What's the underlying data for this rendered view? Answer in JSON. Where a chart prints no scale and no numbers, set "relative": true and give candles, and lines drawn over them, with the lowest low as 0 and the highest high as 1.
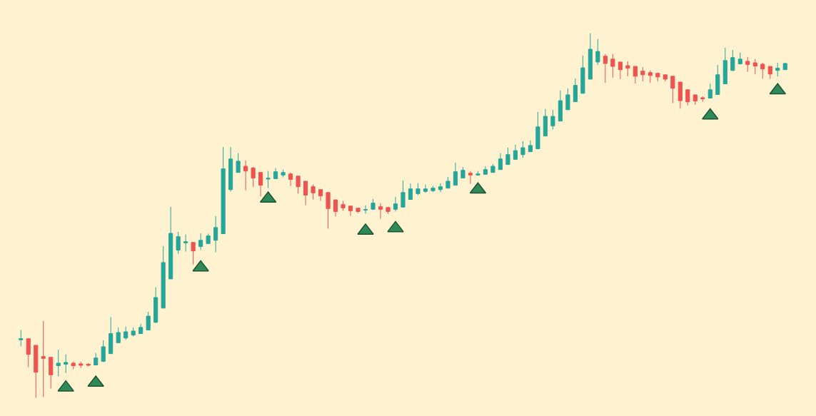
{
  "chart_data": {
    "type": "candlestick",
    "relative": true,
    "categories": [
      null,
      null,
      null,
      null,
      null,
      null,
      null,
      null,
      null,
      null,
      null,
      null,
      null,
      null,
      null,
      null,
      null,
      null,
      null,
      null,
      null,
      null,
      null,
      null,
      null,
      null,
      null,
      null,
      null,
      null,
      null,
      null,
      null,
      null,
      null,
      null,
      null,
      null,
      null,
      null,
      null,
      null,
      null,
      null,
      null,
      null,
      null,
      null,
      null,
      null,
      null,
      null,
      null,
      null,
      null,
      null,
      null,
      null,
      null,
      null,
      null,
      null,
      null,
      null,
      null,
      null,
      null,
      null,
      null,
      null,
      null,
      null,
      null,
      null,
      null,
      null,
      null,
      null,
      null,
      null,
      null,
      null,
      null,
      null,
      null,
      null,
      null,
      null,
      null,
      null,
      null,
      null,
      null,
      null,
      null,
      null,
      null,
      null,
      null,
      null,
      null,
      null,
      null
    ],
    "series": [
      {
        "ohlc": [
          [
            0.159,
            0.186,
            0.141,
            0.162
          ],
          [
            0.162,
            0.162,
            0.084,
            0.119
          ],
          [
            0.144,
            0.144,
            0,
            0.07
          ],
          [
            0.113,
            0.211,
            0.002,
            0.108
          ],
          [
            0.111,
            0.111,
            0.025,
            0.063
          ],
          [
            0.088,
            0.132,
            0.059,
            0.095
          ],
          [
            0.092,
            0.119,
            0.068,
            0.097
          ],
          [
            0.095,
            0.099,
            0.078,
            0.088
          ],
          [
            0.093,
            0.099,
            0.082,
            0.089
          ],
          [
            0.092,
            0.095,
            0.086,
            0.089
          ],
          [
            0.09,
            0.123,
            0.09,
            0.109
          ],
          [
            0.1,
            0.158,
            0.098,
            0.14
          ],
          [
            0.121,
            0.221,
            0.121,
            0.176
          ],
          [
            0.151,
            0.193,
            0.151,
            0.179
          ],
          [
            0.164,
            0.195,
            0.159,
            0.181
          ],
          [
            0.172,
            0.193,
            0.168,
            0.183
          ],
          [
            0.176,
            0.203,
            0.176,
            0.193
          ],
          [
            0.186,
            0.236,
            0.186,
            0.224
          ],
          [
            0.207,
            0.303,
            0.205,
            0.275
          ],
          [
            0.246,
            0.416,
            0.246,
            0.371
          ],
          [
            0.326,
            0.524,
            0.326,
            0.451
          ],
          [
            0.405,
            0.455,
            0.395,
            0.442
          ],
          [
            0.425,
            0.448,
            0.401,
            0.428
          ],
          [
            0.426,
            0.426,
            0.366,
            0.403
          ],
          [
            0.415,
            0.451,
            0.405,
            0.432
          ],
          [
            0.423,
            0.45,
            0.423,
            0.444
          ],
          [
            0.432,
            0.498,
            0.399,
            0.467
          ],
          [
            0.45,
            0.688,
            0.45,
            0.628
          ],
          [
            0.571,
            0.688,
            0.566,
            0.655
          ],
          [
            0.618,
            0.671,
            0.618,
            0.649
          ],
          [
            0.635,
            0.651,
            0.569,
            0.622
          ],
          [
            0.63,
            0.633,
            0.579,
            0.603
          ],
          [
            0.618,
            0.618,
            0.552,
            0.583
          ],
          [
            0.6,
            0.622,
            0.575,
            0.602
          ],
          [
            0.601,
            0.63,
            0.601,
            0.62
          ],
          [
            0.611,
            0.626,
            0.605,
            0.618
          ],
          [
            0.614,
            0.618,
            0.581,
            0.599
          ],
          [
            0.608,
            0.608,
            0.56,
            0.579
          ],
          [
            0.594,
            0.594,
            0.528,
            0.556
          ],
          [
            0.579,
            0.585,
            0.544,
            0.562
          ],
          [
            0.571,
            0.571,
            0.54,
            0.554
          ],
          [
            0.563,
            0.563,
            0.464,
            0.519
          ],
          [
            0.543,
            0.543,
            0.497,
            0.511
          ],
          [
            0.53,
            0.54,
            0.513,
            0.521
          ],
          [
            0.526,
            0.526,
            0.499,
            0.513
          ],
          [
            0.52,
            0.52,
            0.507,
            0.511
          ],
          [
            0.515,
            0.528,
            0.505,
            0.516
          ],
          [
            0.517,
            0.545,
            0.515,
            0.534
          ],
          [
            0.524,
            0.534,
            0.491,
            0.517
          ],
          [
            0.522,
            0.522,
            0.505,
            0.511
          ],
          [
            0.517,
            0.551,
            0.511,
            0.532
          ],
          [
            0.523,
            0.596,
            0.523,
            0.563
          ],
          [
            0.544,
            0.588,
            0.544,
            0.573
          ],
          [
            0.56,
            0.588,
            0.556,
            0.573
          ],
          [
            0.566,
            0.585,
            0.562,
            0.573
          ],
          [
            0.568,
            0.581,
            0.564,
            0.575
          ],
          [
            0.571,
            0.588,
            0.564,
            0.579
          ],
          [
            0.575,
            0.606,
            0.575,
            0.594
          ],
          [
            0.583,
            0.645,
            0.583,
            0.62
          ],
          [
            0.603,
            0.633,
            0.603,
            0.624
          ],
          [
            0.616,
            0.622,
            0.587,
            0.611
          ],
          [
            0.611,
            0.622,
            0.609,
            0.614
          ],
          [
            0.613,
            0.635,
            0.613,
            0.626
          ],
          [
            0.618,
            0.641,
            0.618,
            0.635
          ],
          [
            0.626,
            0.671,
            0.626,
            0.655
          ],
          [
            0.64,
            0.686,
            0.64,
            0.667
          ],
          [
            0.654,
            0.694,
            0.654,
            0.678
          ],
          [
            0.667,
            0.704,
            0.658,
            0.686
          ],
          [
            0.675,
            0.706,
            0.675,
            0.692
          ],
          [
            0.683,
            0.784,
            0.683,
            0.743
          ],
          [
            0.718,
            0.792,
            0.718,
            0.772
          ],
          [
            0.746,
            0.79,
            0.736,
            0.772
          ],
          [
            0.759,
            0.843,
            0.759,
            0.815
          ],
          [
            0.79,
            0.849,
            0.79,
            0.831
          ],
          [
            0.812,
            0.876,
            0.812,
            0.857
          ],
          [
            0.835,
            0.939,
            0.835,
            0.905
          ],
          [
            0.874,
            1,
            0.874,
            0.956
          ],
          [
            0.921,
            0.984,
            0.913,
            0.95
          ],
          [
            0.937,
            0.943,
            0.864,
            0.917
          ],
          [
            0.929,
            0.943,
            0.878,
            0.909
          ],
          [
            0.921,
            0.921,
            0.874,
            0.9
          ],
          [
            0.911,
            0.923,
            0.882,
            0.904
          ],
          [
            0.909,
            0.909,
            0.862,
            0.882
          ],
          [
            0.896,
            0.907,
            0.868,
            0.886
          ],
          [
            0.892,
            0.898,
            0.864,
            0.884
          ],
          [
            0.89,
            0.892,
            0.868,
            0.88
          ],
          [
            0.886,
            0.886,
            0.868,
            0.874
          ],
          [
            0.882,
            0.882,
            0.808,
            0.849
          ],
          [
            0.866,
            0.866,
            0.794,
            0.815
          ],
          [
            0.845,
            0.845,
            0.802,
            0.812
          ],
          [
            0.831,
            0.831,
            0.804,
            0.814
          ],
          [
            0.823,
            0.827,
            0.812,
            0.82
          ],
          [
            0.822,
            0.862,
            0.822,
            0.845
          ],
          [
            0.832,
            0.913,
            0.832,
            0.886
          ],
          [
            0.861,
            0.96,
            0.861,
            0.925
          ],
          [
            0.898,
            0.954,
            0.896,
            0.933
          ],
          [
            0.916,
            0.947,
            0.914,
            0.929
          ],
          [
            0.923,
            0.935,
            0.894,
            0.914
          ],
          [
            0.919,
            0.929,
            0.888,
            0.91
          ],
          [
            0.915,
            0.919,
            0.875,
            0.902
          ],
          [
            0.909,
            0.909,
            0.875,
            0.888
          ],
          [
            0.898,
            0.919,
            0.881,
            0.904
          ],
          [
            0.9,
            0.919,
            0.9,
            0.917
          ]
        ],
        "colors": [
          "#26a69a",
          "#ef5350",
          "#ef5350",
          "#ef5350",
          "#ef5350",
          "#26a69a",
          "#26a69a",
          "#ef5350",
          "#ef5350",
          "#ef5350",
          "#26a69a",
          "#26a69a",
          "#26a69a",
          "#26a69a",
          "#26a69a",
          "#26a69a",
          "#26a69a",
          "#26a69a",
          "#26a69a",
          "#26a69a",
          "#26a69a",
          "#26a69a",
          "#26a69a",
          "#ef5350",
          "#26a69a",
          "#26a69a",
          "#26a69a",
          "#26a69a",
          "#26a69a",
          "#26a69a",
          "#ef5350",
          "#ef5350",
          "#ef5350",
          "#26a69a",
          "#26a69a",
          "#26a69a",
          "#ef5350",
          "#ef5350",
          "#ef5350",
          "#ef5350",
          "#ef5350",
          "#ef5350",
          "#ef5350",
          "#ef5350",
          "#ef5350",
          "#ef5350",
          "#26a69a",
          "#26a69a",
          "#ef5350",
          "#ef5350",
          "#26a69a",
          "#26a69a",
          "#26a69a",
          "#26a69a",
          "#26a69a",
          "#26a69a",
          "#26a69a",
          "#26a69a",
          "#26a69a",
          "#26a69a",
          "#ef5350",
          "#26a69a",
          "#26a69a",
          "#26a69a",
          "#26a69a",
          "#26a69a",
          "#26a69a",
          "#26a69a",
          "#26a69a",
          "#26a69a",
          "#26a69a",
          "#26a69a",
          "#26a69a",
          "#26a69a",
          "#26a69a",
          "#26a69a",
          "#26a69a",
          "#26a69a",
          "#ef5350",
          "#ef5350",
          "#ef5350",
          "#ef5350",
          "#ef5350",
          "#ef5350",
          "#ef5350",
          "#ef5350",
          "#ef5350",
          "#ef5350",
          "#ef5350",
          "#ef5350",
          "#ef5350",
          "#ef5350",
          "#26a69a",
          "#26a69a",
          "#26a69a",
          "#26a69a",
          "#26a69a",
          "#ef5350",
          "#ef5350",
          "#ef5350",
          "#ef5350",
          "#26a69a",
          "#26a69a"
        ]
      },
      {
        "type": "scatter",
        "color": "#2e8a57",
        "marker": "triangle",
        "values": [
          null,
          null,
          null,
          null,
          null,
          null,
          0.028,
          null,
          null,
          null,
          0.041,
          null,
          null,
          null,
          null,
          null,
          null,
          null,
          null,
          null,
          null,
          null,
          null,
          null,
          0.357,
          null,
          null,
          null,
          null,
          null,
          null,
          null,
          null,
          0.546,
          null,
          null,
          null,
          null,
          null,
          null,
          null,
          null,
          null,
          null,
          null,
          null,
          0.458,
          null,
          null,
          null,
          0.465,
          null,
          null,
          null,
          null,
          null,
          null,
          null,
          null,
          null,
          null,
          0.571,
          null,
          null,
          null,
          null,
          null,
          null,
          null,
          null,
          null,
          null,
          null,
          null,
          null,
          null,
          null,
          null,
          null,
          null,
          null,
          null,
          null,
          null,
          null,
          null,
          null,
          null,
          null,
          null,
          null,
          null,
          0.774,
          null,
          null,
          null,
          null,
          null,
          null,
          null,
          null,
          0.843,
          null
        ]
      }
    ]
  }
}
